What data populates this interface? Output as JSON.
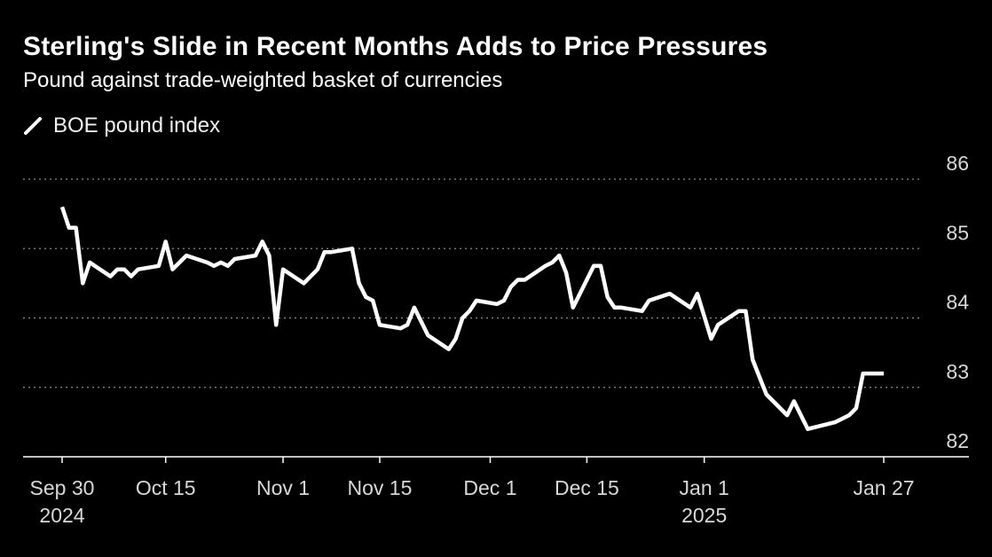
{
  "title": "Sterling's Slide in Recent Months Adds to Price Pressures",
  "subtitle": "Pound against trade-weighted basket of currencies",
  "colors": {
    "background": "#000000",
    "line": "#ffffff",
    "grid": "#8a8a8a",
    "axis": "#ffffff",
    "text": "#d8d8d8"
  },
  "chart_data": {
    "type": "line",
    "x_axis": "dates",
    "ylim": [
      82,
      86
    ],
    "yticks": [
      82,
      83,
      84,
      85,
      86
    ],
    "grid": "horizontal dotted",
    "y_axis_position": "right",
    "legend_position": "top-left",
    "xticks": [
      {
        "date": "2024-09-30",
        "line1": "Sep 30",
        "line2": "2024"
      },
      {
        "date": "2024-10-15",
        "line1": "Oct 15",
        "line2": ""
      },
      {
        "date": "2024-11-01",
        "line1": "Nov 1",
        "line2": ""
      },
      {
        "date": "2024-11-15",
        "line1": "Nov 15",
        "line2": ""
      },
      {
        "date": "2024-12-01",
        "line1": "Dec 1",
        "line2": ""
      },
      {
        "date": "2024-12-15",
        "line1": "Dec 15",
        "line2": ""
      },
      {
        "date": "2025-01-01",
        "line1": "Jan 1",
        "line2": "2025"
      },
      {
        "date": "2025-01-27",
        "line1": "Jan 27",
        "line2": ""
      }
    ],
    "series": [
      {
        "name": "BOE pound index",
        "points": [
          [
            "2024-09-30",
            85.6
          ],
          [
            "2024-10-01",
            85.3
          ],
          [
            "2024-10-02",
            85.3
          ],
          [
            "2024-10-03",
            84.5
          ],
          [
            "2024-10-04",
            84.8
          ],
          [
            "2024-10-07",
            84.6
          ],
          [
            "2024-10-08",
            84.7
          ],
          [
            "2024-10-09",
            84.7
          ],
          [
            "2024-10-10",
            84.6
          ],
          [
            "2024-10-11",
            84.7
          ],
          [
            "2024-10-14",
            84.75
          ],
          [
            "2024-10-15",
            85.1
          ],
          [
            "2024-10-16",
            84.7
          ],
          [
            "2024-10-17",
            84.8
          ],
          [
            "2024-10-18",
            84.9
          ],
          [
            "2024-10-21",
            84.8
          ],
          [
            "2024-10-22",
            84.75
          ],
          [
            "2024-10-23",
            84.8
          ],
          [
            "2024-10-24",
            84.75
          ],
          [
            "2024-10-25",
            84.85
          ],
          [
            "2024-10-28",
            84.9
          ],
          [
            "2024-10-29",
            85.1
          ],
          [
            "2024-10-30",
            84.9
          ],
          [
            "2024-10-31",
            83.9
          ],
          [
            "2024-11-01",
            84.7
          ],
          [
            "2024-11-04",
            84.5
          ],
          [
            "2024-11-05",
            84.6
          ],
          [
            "2024-11-06",
            84.7
          ],
          [
            "2024-11-07",
            84.95
          ],
          [
            "2024-11-08",
            84.95
          ],
          [
            "2024-11-11",
            85.0
          ],
          [
            "2024-11-12",
            84.5
          ],
          [
            "2024-11-13",
            84.3
          ],
          [
            "2024-11-14",
            84.25
          ],
          [
            "2024-11-15",
            83.9
          ],
          [
            "2024-11-18",
            83.85
          ],
          [
            "2024-11-19",
            83.9
          ],
          [
            "2024-11-20",
            84.15
          ],
          [
            "2024-11-21",
            83.95
          ],
          [
            "2024-11-22",
            83.75
          ],
          [
            "2024-11-25",
            83.55
          ],
          [
            "2024-11-26",
            83.7
          ],
          [
            "2024-11-27",
            84.0
          ],
          [
            "2024-11-28",
            84.1
          ],
          [
            "2024-11-29",
            84.25
          ],
          [
            "2024-12-02",
            84.2
          ],
          [
            "2024-12-03",
            84.25
          ],
          [
            "2024-12-04",
            84.45
          ],
          [
            "2024-12-05",
            84.55
          ],
          [
            "2024-12-06",
            84.55
          ],
          [
            "2024-12-09",
            84.75
          ],
          [
            "2024-12-10",
            84.8
          ],
          [
            "2024-12-11",
            84.9
          ],
          [
            "2024-12-12",
            84.65
          ],
          [
            "2024-12-13",
            84.15
          ],
          [
            "2024-12-16",
            84.75
          ],
          [
            "2024-12-17",
            84.75
          ],
          [
            "2024-12-18",
            84.3
          ],
          [
            "2024-12-19",
            84.15
          ],
          [
            "2024-12-20",
            84.15
          ],
          [
            "2024-12-23",
            84.1
          ],
          [
            "2024-12-24",
            84.25
          ],
          [
            "2024-12-27",
            84.35
          ],
          [
            "2024-12-30",
            84.15
          ],
          [
            "2024-12-31",
            84.35
          ],
          [
            "2025-01-02",
            83.7
          ],
          [
            "2025-01-03",
            83.9
          ],
          [
            "2025-01-06",
            84.1
          ],
          [
            "2025-01-07",
            84.1
          ],
          [
            "2025-01-08",
            83.4
          ],
          [
            "2025-01-09",
            83.15
          ],
          [
            "2025-01-10",
            82.9
          ],
          [
            "2025-01-13",
            82.6
          ],
          [
            "2025-01-14",
            82.8
          ],
          [
            "2025-01-15",
            82.6
          ],
          [
            "2025-01-16",
            82.4
          ],
          [
            "2025-01-20",
            82.5
          ],
          [
            "2025-01-21",
            82.55
          ],
          [
            "2025-01-22",
            82.6
          ],
          [
            "2025-01-23",
            82.7
          ],
          [
            "2025-01-24",
            83.2
          ],
          [
            "2025-01-27",
            83.2
          ]
        ]
      }
    ]
  }
}
